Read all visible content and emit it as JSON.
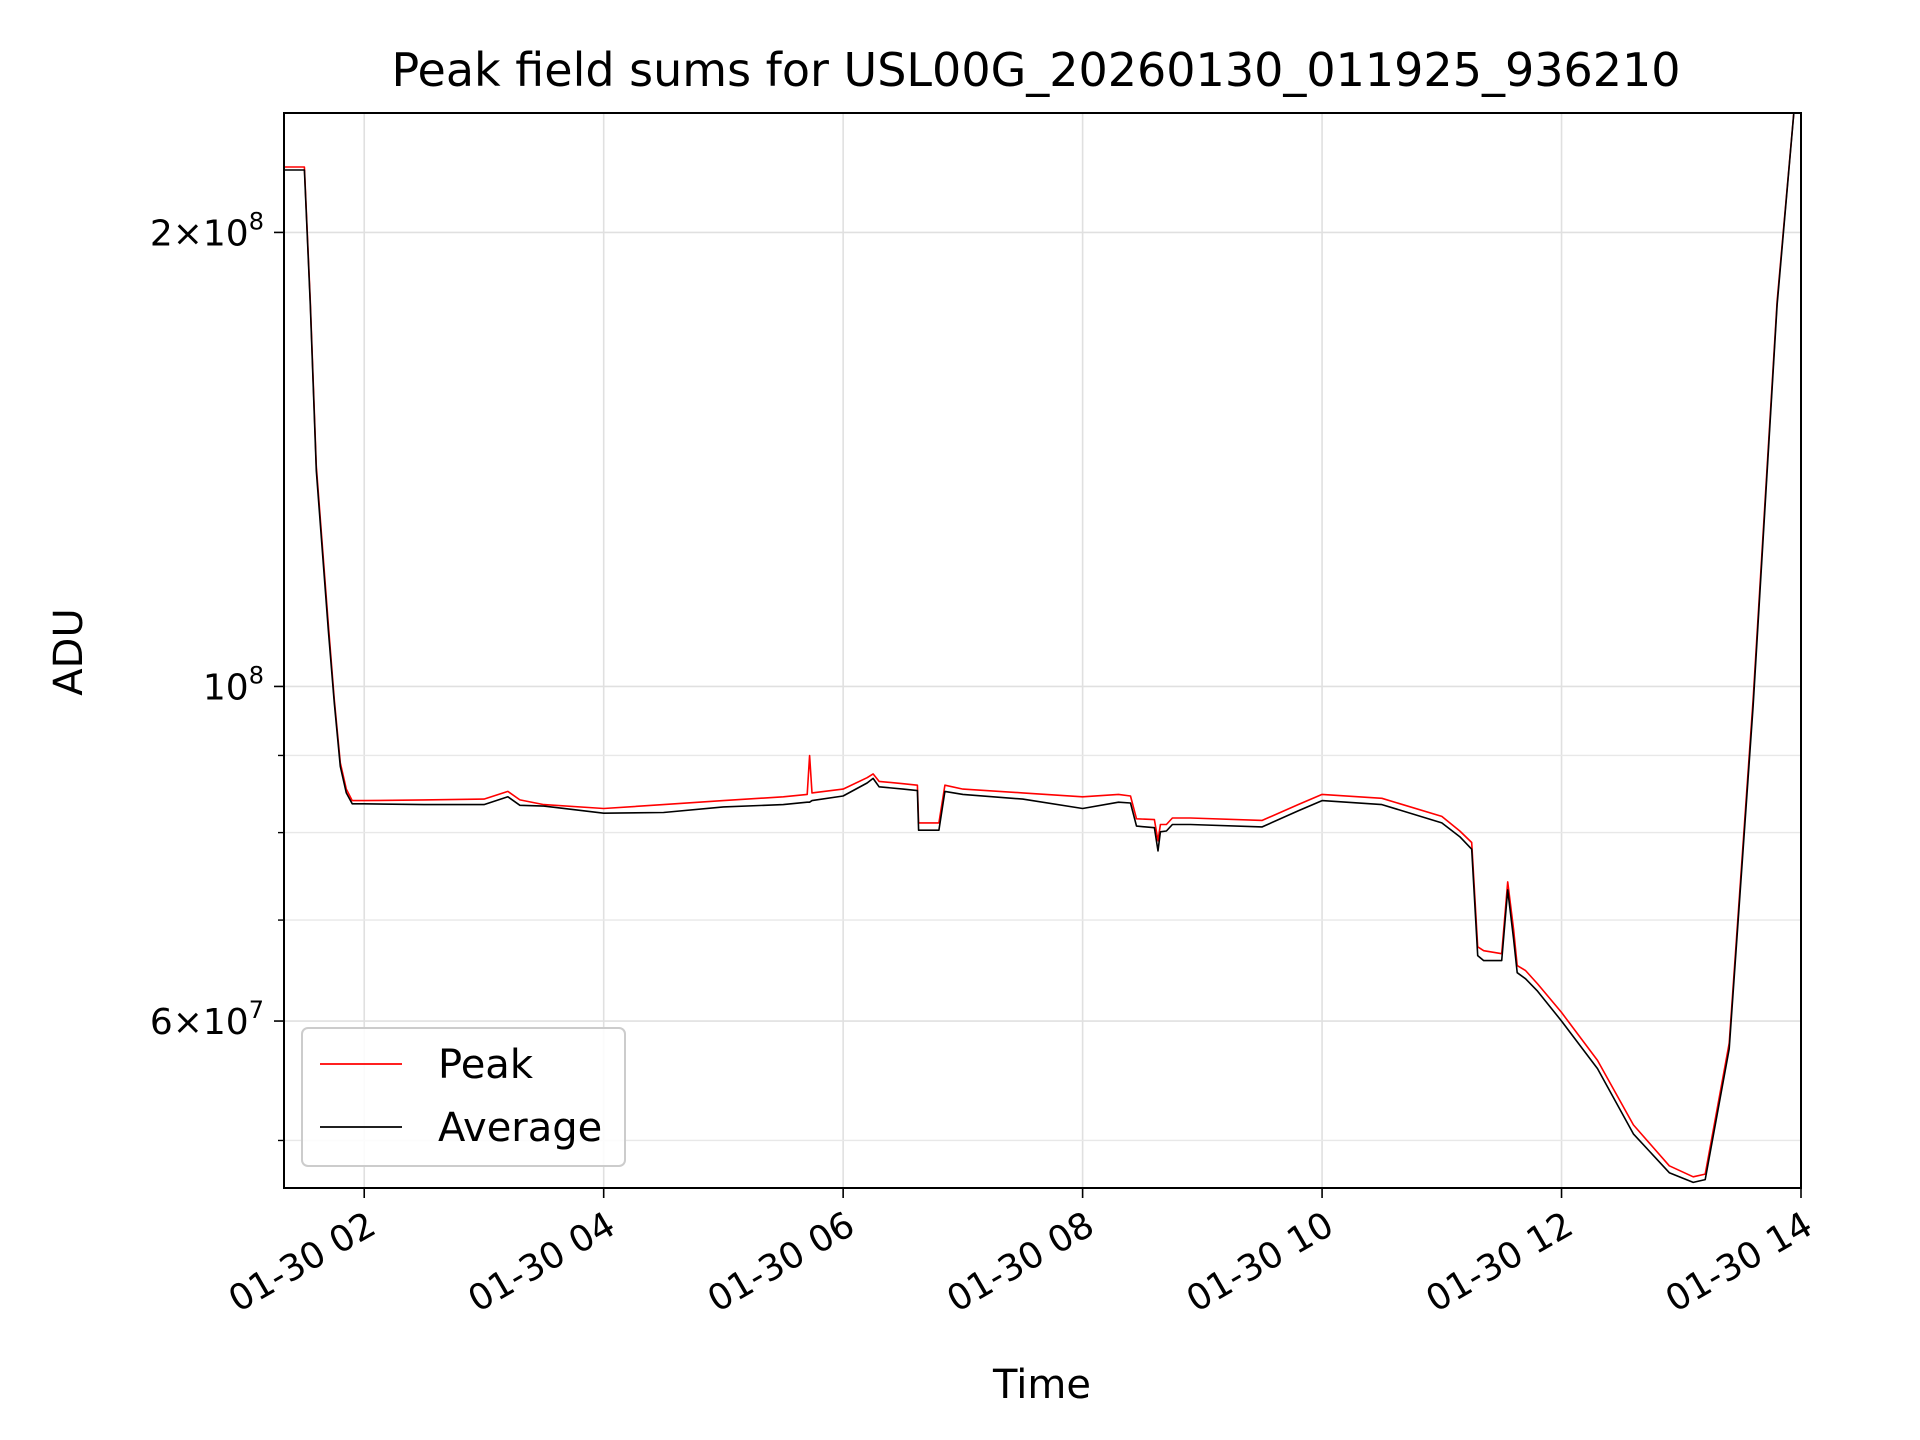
{
  "chart_data": {
    "type": "line",
    "title": "Peak field sums for USL00G_20260130_011925_936210",
    "xlabel": "Time",
    "ylabel": "ADU",
    "x_range_hours": [
      1.33,
      14.0
    ],
    "ylim": [
      46500000,
      240000000
    ],
    "y_scale": "log",
    "grid": true,
    "legend_position": "lower left",
    "x_ticks": [
      {
        "value": 2,
        "label": "01-30 02"
      },
      {
        "value": 4,
        "label": "01-30 04"
      },
      {
        "value": 6,
        "label": "01-30 06"
      },
      {
        "value": 8,
        "label": "01-30 08"
      },
      {
        "value": 10,
        "label": "01-30 10"
      },
      {
        "value": 12,
        "label": "01-30 12"
      },
      {
        "value": 14,
        "label": "01-30 14"
      }
    ],
    "y_major_ticks": [
      {
        "value": 200000000,
        "mantissa": "2×10",
        "exp": "8"
      },
      {
        "value": 100000000,
        "mantissa": "10",
        "exp": "8"
      },
      {
        "value": 60000000,
        "mantissa": "6×10",
        "exp": "7"
      }
    ],
    "y_minor_ticks": [
      50000000,
      70000000,
      80000000,
      90000000
    ],
    "series": [
      {
        "name": "Peak",
        "color": "#ff0000",
        "x_hours": [
          1.33,
          1.5,
          1.55,
          1.6,
          1.7,
          1.75,
          1.8,
          1.85,
          1.9,
          2.0,
          2.5,
          3.0,
          3.2,
          3.3,
          3.5,
          4.0,
          4.5,
          5.0,
          5.5,
          5.7,
          5.72,
          5.74,
          6.0,
          6.2,
          6.25,
          6.3,
          6.5,
          6.62,
          6.63,
          6.8,
          6.85,
          7.0,
          7.5,
          8.0,
          8.3,
          8.4,
          8.45,
          8.6,
          8.63,
          8.65,
          8.7,
          8.75,
          8.9,
          9.5,
          9.8,
          10.0,
          10.5,
          11.0,
          11.15,
          11.25,
          11.3,
          11.35,
          11.5,
          11.55,
          11.6,
          11.63,
          11.7,
          11.8,
          12.0,
          12.3,
          12.6,
          12.9,
          13.1,
          13.2,
          13.4,
          13.6,
          13.8,
          13.95,
          14.0
        ],
        "y_adu": [
          221000000,
          221000000,
          180000000,
          140000000,
          110000000,
          98000000,
          89000000,
          85500000,
          84000000,
          84000000,
          84100000,
          84200000,
          85200000,
          84100000,
          83500000,
          83000000,
          83500000,
          84000000,
          84500000,
          84800000,
          90000000,
          85000000,
          85500000,
          87000000,
          87500000,
          86500000,
          86200000,
          86000000,
          81200000,
          81200000,
          86000000,
          85500000,
          85000000,
          84500000,
          84800000,
          84600000,
          81700000,
          81600000,
          79000000,
          81000000,
          81000000,
          81800000,
          81800000,
          81500000,
          83500000,
          84800000,
          84300000,
          82000000,
          80200000,
          78800000,
          67200000,
          66800000,
          66500000,
          74200000,
          69000000,
          65300000,
          64800000,
          63500000,
          60800000,
          56500000,
          51200000,
          48100000,
          47300000,
          47500000,
          58000000,
          98000000,
          180000000,
          245000000,
          245000000
        ]
      },
      {
        "name": "Average",
        "color": "#000000",
        "x_hours": [
          1.33,
          1.5,
          1.55,
          1.6,
          1.7,
          1.75,
          1.8,
          1.85,
          1.9,
          2.0,
          2.5,
          3.0,
          3.2,
          3.3,
          3.5,
          4.0,
          4.5,
          5.0,
          5.5,
          5.7,
          5.72,
          5.74,
          6.0,
          6.2,
          6.25,
          6.3,
          6.5,
          6.62,
          6.63,
          6.8,
          6.85,
          7.0,
          7.5,
          8.0,
          8.3,
          8.4,
          8.45,
          8.6,
          8.63,
          8.65,
          8.7,
          8.75,
          8.9,
          9.5,
          9.8,
          10.0,
          10.5,
          11.0,
          11.15,
          11.25,
          11.3,
          11.35,
          11.5,
          11.55,
          11.6,
          11.63,
          11.7,
          11.8,
          12.0,
          12.3,
          12.6,
          12.9,
          13.1,
          13.2,
          13.4,
          13.6,
          13.8,
          13.95,
          14.0
        ],
        "y_adu": [
          220000000,
          220000000,
          179000000,
          139000000,
          109000000,
          97500000,
          88500000,
          85000000,
          83600000,
          83600000,
          83500000,
          83500000,
          84500000,
          83400000,
          83300000,
          82400000,
          82500000,
          83200000,
          83500000,
          83800000,
          83800000,
          84000000,
          84600000,
          86300000,
          86900000,
          85800000,
          85500000,
          85300000,
          80300000,
          80300000,
          85200000,
          84800000,
          84200000,
          83000000,
          83800000,
          83700000,
          80800000,
          80600000,
          77800000,
          80100000,
          80200000,
          81000000,
          81000000,
          80700000,
          82700000,
          84000000,
          83500000,
          81200000,
          79500000,
          78000000,
          66300000,
          65800000,
          65800000,
          73300000,
          68000000,
          64600000,
          64000000,
          62800000,
          60000000,
          55800000,
          50500000,
          47600000,
          46900000,
          47100000,
          57500000,
          97000000,
          179000000,
          245000000,
          245000000
        ]
      }
    ]
  }
}
